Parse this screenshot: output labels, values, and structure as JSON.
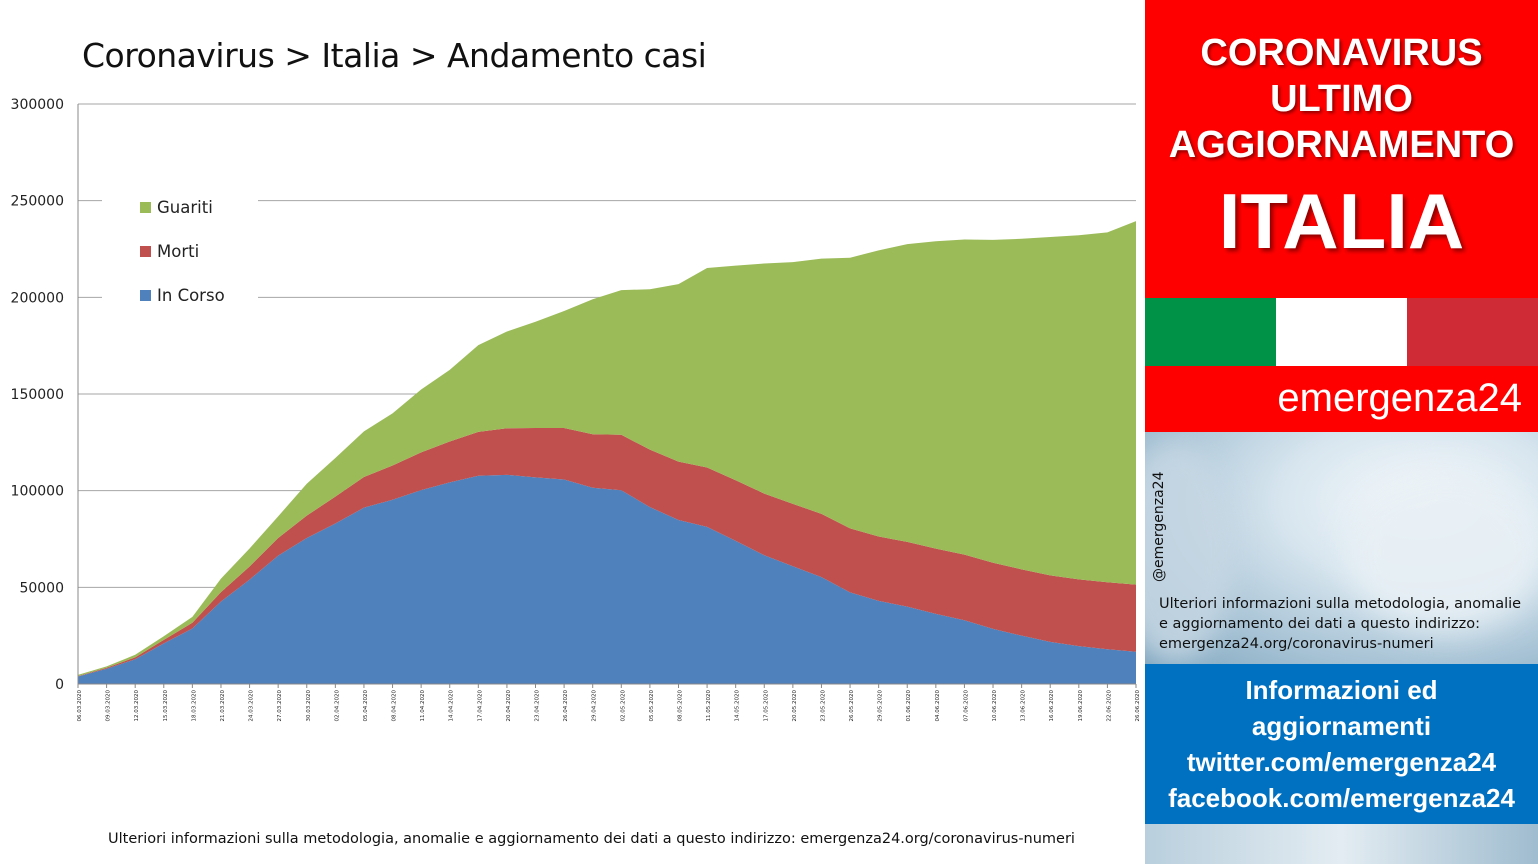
{
  "title": "Coronavirus > Italia > Andamento casi",
  "footer_note": "Ulteriori informazioni sulla metodologia, anomalie e aggiornamento dei dati a questo indirizzo: emergenza24.org/coronavirus-numeri",
  "side_panel": {
    "headline": [
      "CORONAVIRUS",
      "ULTIMO",
      "AGGIORNAMENTO"
    ],
    "country": "ITALIA",
    "flag_colors": [
      "#009246",
      "#ffffff",
      "#ce2b37"
    ],
    "brand": "emergenza24",
    "handle": "@emergenza24",
    "note": "Ulteriori informazioni sulla metodologia, anomalie e aggiornamento dei dati a questo indirizzo: emergenza24.org/coronavirus-numeri",
    "info_lines": [
      "Informazioni ed",
      "aggiornamenti",
      "twitter.com/emergenza24",
      "facebook.com/emergenza24"
    ],
    "colors": {
      "red": "#ff0000",
      "blue": "#0070c0"
    }
  },
  "chart_data": {
    "type": "area",
    "stacked": true,
    "title": "Coronavirus > Italia > Andamento casi",
    "xlabel": "",
    "ylabel": "",
    "ylim": [
      0,
      300000
    ],
    "yticks": [
      0,
      50000,
      100000,
      150000,
      200000,
      250000,
      300000
    ],
    "grid": true,
    "legend_position": "top-left",
    "x": [
      "06.03.2020",
      "09.03.2020",
      "12.03.2020",
      "15.03.2020",
      "18.03.2020",
      "21.03.2020",
      "24.03.2020",
      "27.03.2020",
      "30.03.2020",
      "02.04.2020",
      "05.04.2020",
      "08.04.2020",
      "11.04.2020",
      "14.04.2020",
      "17.04.2020",
      "20.04.2020",
      "23.04.2020",
      "26.04.2020",
      "29.04.2020",
      "02.05.2020",
      "05.05.2020",
      "08.05.2020",
      "11.05.2020",
      "14.05.2020",
      "17.05.2020",
      "20.05.2020",
      "23.05.2020",
      "26.05.2020",
      "29.05.2020",
      "01.06.2020",
      "04.06.2020",
      "07.06.2020",
      "10.06.2020",
      "13.06.2020",
      "16.06.2020",
      "19.06.2020",
      "22.06.2020",
      "26.06.2020"
    ],
    "series": [
      {
        "name": "In Corso",
        "color": "#4f81bd",
        "values": [
          3900,
          7900,
          12800,
          21000,
          28700,
          42700,
          54000,
          66400,
          75500,
          83000,
          91200,
          95300,
          100300,
          104300,
          107700,
          108200,
          106900,
          105800,
          101500,
          100200,
          91500,
          84800,
          81300,
          74000,
          66600,
          60900,
          55300,
          47400,
          43000,
          40000,
          36300,
          33000,
          28500,
          25000,
          21800,
          19600,
          18000,
          16700
        ]
      },
      {
        "name": "Morti",
        "color": "#c0504d",
        "values": [
          200,
          500,
          1000,
          1800,
          3000,
          4800,
          6800,
          9100,
          11600,
          13900,
          15900,
          17700,
          19500,
          21100,
          22700,
          24100,
          25500,
          26600,
          27700,
          28700,
          29700,
          30200,
          30700,
          31400,
          31900,
          32300,
          32700,
          33100,
          33300,
          33500,
          33700,
          33900,
          34200,
          34300,
          34400,
          34500,
          34600,
          34700
        ]
      },
      {
        "name": "Guariti",
        "color": "#9bbb59",
        "values": [
          600,
          700,
          1300,
          1900,
          3000,
          7000,
          9300,
          11200,
          16500,
          20000,
          23600,
          27000,
          32500,
          37100,
          44900,
          50000,
          55000,
          60500,
          69800,
          74800,
          83000,
          91800,
          103200,
          111000,
          119000,
          125000,
          132000,
          140000,
          148000,
          154000,
          159000,
          163000,
          167000,
          171000,
          175000,
          178000,
          181000,
          188000
        ]
      }
    ]
  }
}
